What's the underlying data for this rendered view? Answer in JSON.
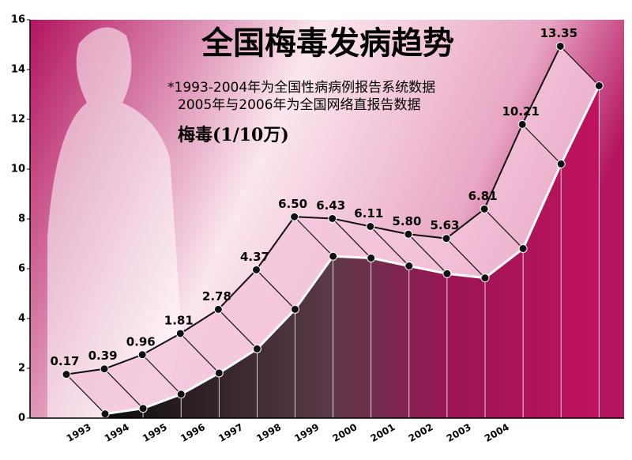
{
  "chart_data": {
    "type": "ribbon",
    "title": "全国梅毒发病趋势",
    "notes": [
      "*1993-2004年为全国性病病例报告系统数据",
      "2005年与2006年为全国网络直报告数据"
    ],
    "y_label": "梅毒(1/10万)",
    "categories": [
      "1993",
      "1994",
      "1995",
      "1996",
      "1997",
      "1998",
      "1999",
      "2000",
      "2001",
      "2002",
      "2003",
      "2004",
      null,
      null
    ],
    "values": [
      0.17,
      0.39,
      0.96,
      1.81,
      2.78,
      4.37,
      6.5,
      6.43,
      6.11,
      5.8,
      5.63,
      6.81,
      10.21,
      13.35
    ],
    "value_labels": [
      "0.17",
      "0.39",
      "0.96",
      "1.81",
      "2.78",
      "4.37",
      "6.50",
      "6.43",
      "6.11",
      "5.80",
      "5.63",
      "6.81",
      "10.21",
      "13.35"
    ],
    "ylim": [
      0,
      16
    ],
    "yticks": [
      0,
      2,
      4,
      6,
      8,
      10,
      12,
      14,
      16
    ],
    "colors": {
      "face": "#f3c6dc",
      "front": "#c0135f",
      "line": "#111111"
    }
  }
}
